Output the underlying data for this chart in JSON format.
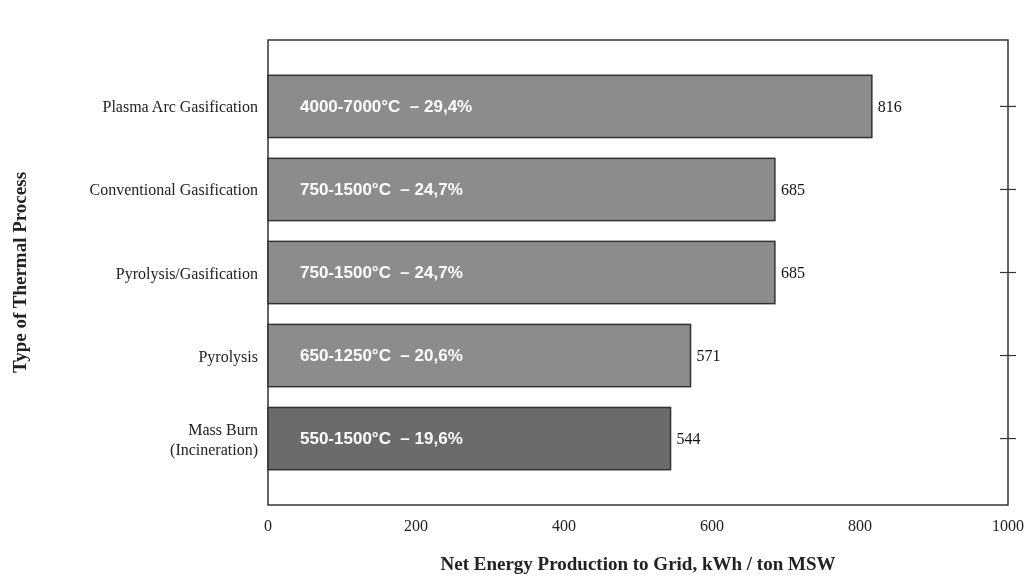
{
  "chart_data": {
    "type": "bar",
    "orientation": "horizontal",
    "xlabel": "Net Energy Production to Grid, kWh / ton MSW",
    "ylabel": "Type of Thermal Process",
    "categories": [
      "Plasma Arc Gasification",
      "Conventional Gasification",
      "Pyrolysis/Gasification",
      "Pyrolysis",
      "Mass Burn\n(Incineration)"
    ],
    "values": [
      816,
      685,
      685,
      571,
      544
    ],
    "colors": [
      "#8c8c8c",
      "#8c8c8c",
      "#8c8c8c",
      "#8c8c8c",
      "#6b6b6b"
    ],
    "data_labels": true,
    "xlim": [
      0,
      1000
    ],
    "xticks": [
      0,
      200,
      400,
      600,
      800,
      1000
    ],
    "annotations": [
      {
        "text": "4000-7000°C  – 29,4%",
        "y": "Plasma Arc Gasification"
      },
      {
        "text": "750-1500°C  – 24,7%",
        "y": "Conventional Gasification"
      },
      {
        "text": "750-1500°C  – 24,7%",
        "y": "Pyrolysis/Gasification"
      },
      {
        "text": "650-1250°C  – 20,6%",
        "y": "Pyrolysis"
      },
      {
        "text": "550-1500°C  – 19,6%",
        "y": "Mass Burn\n(Incineration)"
      }
    ],
    "grid": false
  }
}
